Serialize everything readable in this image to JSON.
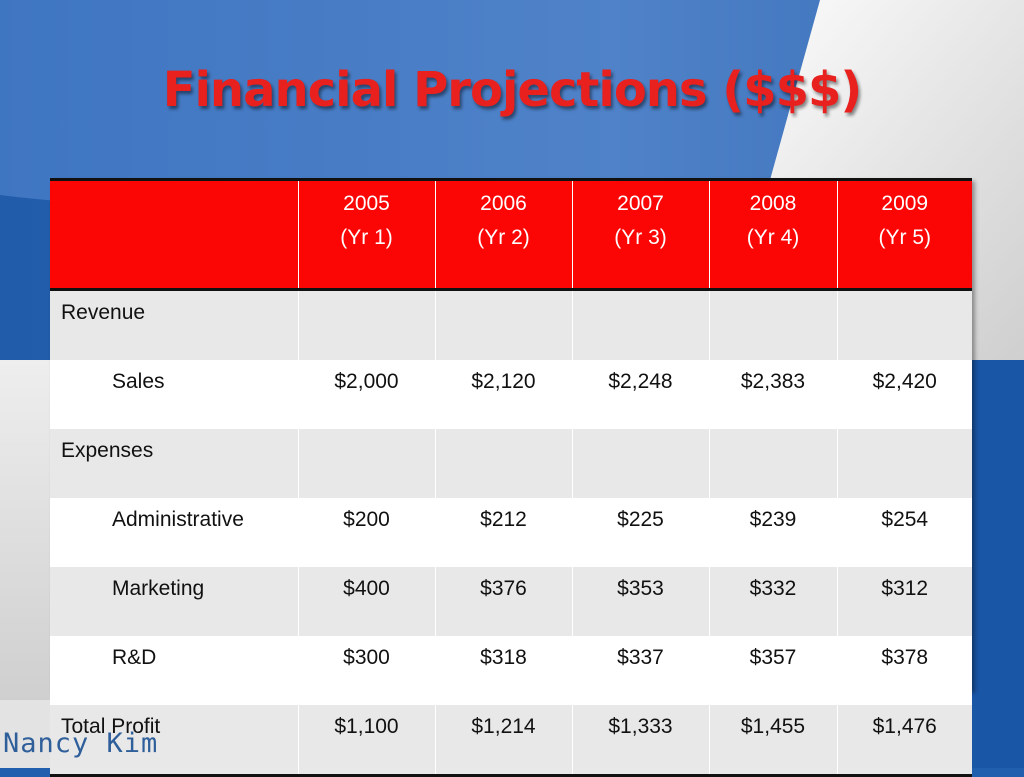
{
  "slide": {
    "title": "Financial Projections ($$$)",
    "author": "Nancy Kim"
  },
  "table": {
    "headers": [
      {
        "year": "",
        "period": ""
      },
      {
        "year": "2005",
        "period": "(Yr 1)"
      },
      {
        "year": "2006",
        "period": "(Yr 2)"
      },
      {
        "year": "2007",
        "period": "(Yr 3)"
      },
      {
        "year": "2008",
        "period": "(Yr 4)"
      },
      {
        "year": "2009",
        "period": "(Yr 5)"
      }
    ],
    "rows": [
      {
        "label": "Revenue",
        "values": [
          "",
          "",
          "",
          "",
          ""
        ]
      },
      {
        "label": "Sales",
        "values": [
          "$2,000",
          "$2,120",
          "$2,248",
          "$2,383",
          "$2,420"
        ]
      },
      {
        "label": "Expenses",
        "values": [
          "",
          "",
          "",
          "",
          ""
        ]
      },
      {
        "label": "Administrative",
        "values": [
          "$200",
          "$212",
          "$225",
          "$239",
          "$254"
        ]
      },
      {
        "label": "Marketing",
        "values": [
          "$400",
          "$376",
          "$353",
          "$332",
          "$312"
        ]
      },
      {
        "label": "R&D",
        "values": [
          "$300",
          "$318",
          "$337",
          "$357",
          "$378"
        ]
      },
      {
        "label": "Total Profit",
        "values": [
          "$1,100",
          "$1,214",
          "$1,333",
          "$1,455",
          "$1,476"
        ]
      }
    ]
  },
  "colors": {
    "title": "#e8201e",
    "header_bg": "#fb0505",
    "background_blue": "#1f5fae",
    "author_text": "#2f5f9a"
  }
}
